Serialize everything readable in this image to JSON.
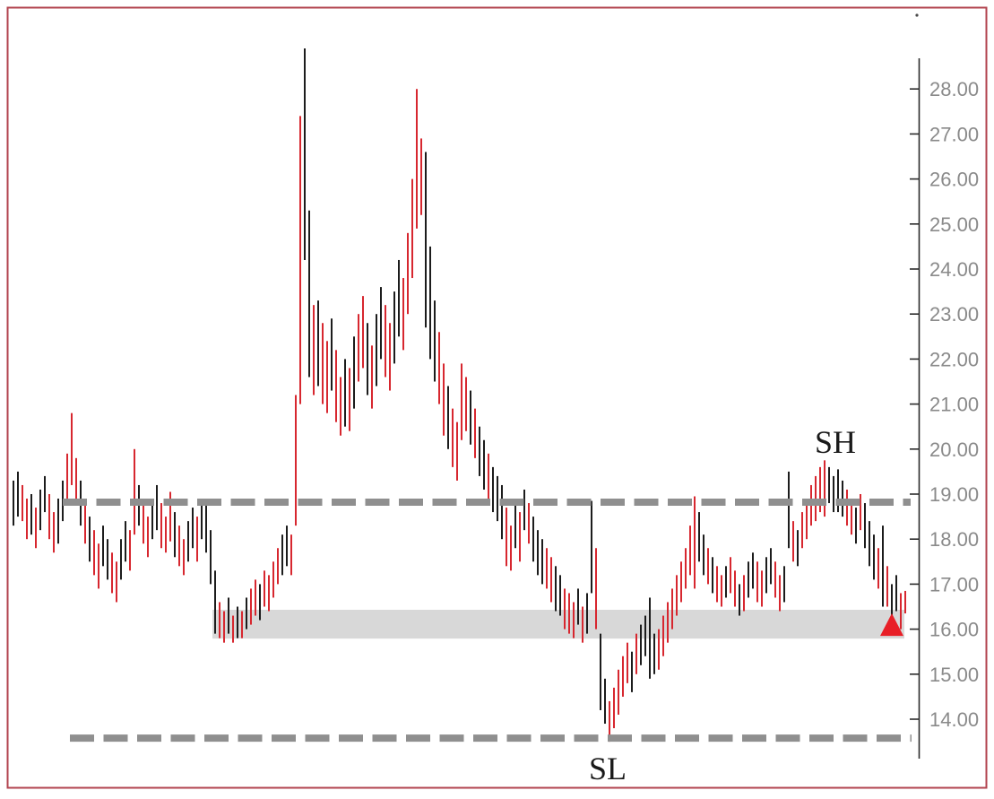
{
  "annotations": {
    "swing_high": "SH",
    "swing_low": "SL"
  },
  "colors": {
    "up_bar": "#1c1c1c",
    "down_bar": "#d7272f",
    "dashed_line": "#8f8f8f",
    "support_band": "#d8d8d8",
    "marker": "#e81f27",
    "axis_line": "#2b2b2b",
    "axis_text": "#8a8a8a",
    "frame_border": "#b2434e",
    "annotation_text": "#1a1a1a"
  },
  "chart_data": {
    "type": "bar",
    "subtype": "high-low price bars (red = down bar, black = up bar)",
    "title": "",
    "xlabel": "",
    "ylabel": "",
    "grid": false,
    "legend": false,
    "y_axis": {
      "position": "right",
      "min": 14.0,
      "max": 28.0,
      "tick_step": 1.0,
      "tick_labels": [
        "28.00",
        "27.00",
        "26.00",
        "25.00",
        "24.00",
        "23.00",
        "22.00",
        "21.00",
        "20.00",
        "19.00",
        "18.00",
        "17.00",
        "16.00",
        "15.00",
        "14.00"
      ]
    },
    "dashed_levels": [
      {
        "name": "upper-resistance",
        "price": 18.82
      },
      {
        "name": "lower-support",
        "price": 13.58
      }
    ],
    "support_zone": {
      "top_price": 16.43,
      "bottom_price": 15.79
    },
    "marker": {
      "type": "triangle-up",
      "price_top": 16.35,
      "price_bottom": 15.85,
      "bar_index": 196
    },
    "labels": [
      {
        "text": "SH",
        "meaning": "swing high"
      },
      {
        "text": "SL",
        "meaning": "swing low"
      }
    ],
    "bars": [
      [
        19.3,
        18.3,
        "k"
      ],
      [
        19.5,
        18.5,
        "k"
      ],
      [
        19.2,
        18.4,
        "r"
      ],
      [
        18.9,
        18.0,
        "r"
      ],
      [
        19.0,
        18.1,
        "k"
      ],
      [
        18.7,
        17.8,
        "r"
      ],
      [
        19.1,
        18.2,
        "k"
      ],
      [
        19.4,
        18.6,
        "k"
      ],
      [
        19.0,
        18.0,
        "r"
      ],
      [
        18.6,
        17.7,
        "r"
      ],
      [
        18.9,
        17.9,
        "k"
      ],
      [
        19.3,
        18.4,
        "k"
      ],
      [
        19.9,
        18.8,
        "r"
      ],
      [
        20.8,
        19.2,
        "r"
      ],
      [
        19.8,
        18.8,
        "r"
      ],
      [
        19.3,
        18.3,
        "k"
      ],
      [
        18.9,
        17.9,
        "r"
      ],
      [
        18.5,
        17.5,
        "k"
      ],
      [
        18.2,
        17.2,
        "r"
      ],
      [
        17.9,
        16.9,
        "r"
      ],
      [
        18.3,
        17.4,
        "k"
      ],
      [
        18.0,
        17.1,
        "k"
      ],
      [
        17.7,
        16.8,
        "r"
      ],
      [
        17.5,
        16.6,
        "r"
      ],
      [
        18.0,
        17.1,
        "k"
      ],
      [
        18.4,
        17.5,
        "k"
      ],
      [
        18.2,
        17.3,
        "r"
      ],
      [
        20.0,
        18.1,
        "r"
      ],
      [
        19.2,
        18.3,
        "k"
      ],
      [
        18.8,
        17.9,
        "r"
      ],
      [
        18.5,
        17.6,
        "r"
      ],
      [
        18.9,
        18.0,
        "k"
      ],
      [
        19.2,
        18.2,
        "k"
      ],
      [
        18.8,
        17.8,
        "r"
      ],
      [
        18.5,
        17.7,
        "r"
      ],
      [
        19.05,
        17.95,
        "r"
      ],
      [
        18.6,
        17.6,
        "k"
      ],
      [
        18.3,
        17.4,
        "r"
      ],
      [
        18.0,
        17.2,
        "r"
      ],
      [
        18.4,
        17.5,
        "k"
      ],
      [
        18.7,
        17.8,
        "k"
      ],
      [
        18.5,
        17.5,
        "r"
      ],
      [
        18.9,
        18.0,
        "k"
      ],
      [
        18.8,
        17.7,
        "k"
      ],
      [
        18.2,
        17.0,
        "k"
      ],
      [
        17.3,
        15.9,
        "k"
      ],
      [
        16.6,
        15.8,
        "r"
      ],
      [
        16.4,
        15.7,
        "r"
      ],
      [
        16.7,
        15.9,
        "k"
      ],
      [
        16.3,
        15.7,
        "r"
      ],
      [
        16.5,
        15.8,
        "k"
      ],
      [
        16.4,
        15.8,
        "r"
      ],
      [
        16.7,
        16.0,
        "k"
      ],
      [
        16.9,
        16.1,
        "r"
      ],
      [
        17.1,
        16.3,
        "r"
      ],
      [
        17.0,
        16.2,
        "k"
      ],
      [
        17.3,
        16.5,
        "r"
      ],
      [
        17.2,
        16.4,
        "r"
      ],
      [
        17.5,
        16.7,
        "r"
      ],
      [
        17.8,
        17.0,
        "r"
      ],
      [
        18.1,
        17.2,
        "k"
      ],
      [
        18.3,
        17.4,
        "k"
      ],
      [
        18.1,
        17.2,
        "r"
      ],
      [
        21.2,
        18.3,
        "r"
      ],
      [
        27.4,
        21.0,
        "r"
      ],
      [
        28.9,
        24.2,
        "k"
      ],
      [
        25.3,
        21.6,
        "k"
      ],
      [
        23.2,
        21.2,
        "r"
      ],
      [
        23.3,
        21.4,
        "k"
      ],
      [
        22.8,
        21.0,
        "r"
      ],
      [
        22.4,
        20.8,
        "r"
      ],
      [
        22.9,
        21.3,
        "k"
      ],
      [
        22.2,
        20.6,
        "r"
      ],
      [
        21.6,
        20.3,
        "r"
      ],
      [
        22.0,
        20.5,
        "k"
      ],
      [
        21.8,
        20.4,
        "r"
      ],
      [
        22.5,
        20.9,
        "k"
      ],
      [
        23.0,
        21.5,
        "r"
      ],
      [
        23.4,
        21.8,
        "r"
      ],
      [
        22.8,
        21.2,
        "k"
      ],
      [
        22.3,
        20.9,
        "r"
      ],
      [
        23.0,
        21.4,
        "k"
      ],
      [
        23.6,
        22.0,
        "k"
      ],
      [
        23.2,
        21.6,
        "r"
      ],
      [
        22.8,
        21.3,
        "r"
      ],
      [
        23.5,
        21.9,
        "k"
      ],
      [
        24.2,
        22.5,
        "k"
      ],
      [
        23.8,
        22.2,
        "r"
      ],
      [
        24.8,
        23.0,
        "r"
      ],
      [
        26.0,
        23.8,
        "r"
      ],
      [
        28.0,
        24.9,
        "r"
      ],
      [
        26.9,
        25.2,
        "r"
      ],
      [
        26.6,
        22.7,
        "k"
      ],
      [
        24.5,
        22.0,
        "k"
      ],
      [
        23.3,
        21.5,
        "k"
      ],
      [
        22.6,
        21.0,
        "r"
      ],
      [
        21.9,
        20.3,
        "r"
      ],
      [
        21.4,
        20.0,
        "k"
      ],
      [
        20.9,
        19.6,
        "r"
      ],
      [
        20.6,
        19.3,
        "r"
      ],
      [
        21.9,
        20.2,
        "r"
      ],
      [
        21.6,
        20.4,
        "r"
      ],
      [
        21.3,
        20.1,
        "k"
      ],
      [
        20.9,
        19.8,
        "r"
      ],
      [
        20.5,
        19.4,
        "k"
      ],
      [
        20.2,
        19.1,
        "k"
      ],
      [
        19.9,
        18.8,
        "r"
      ],
      [
        19.6,
        18.6,
        "k"
      ],
      [
        19.4,
        18.4,
        "k"
      ],
      [
        19.2,
        18.0,
        "k"
      ],
      [
        18.7,
        17.4,
        "r"
      ],
      [
        18.3,
        17.3,
        "r"
      ],
      [
        18.9,
        17.8,
        "k"
      ],
      [
        18.6,
        17.5,
        "r"
      ],
      [
        19.1,
        18.2,
        "k"
      ],
      [
        18.8,
        17.9,
        "r"
      ],
      [
        18.5,
        17.5,
        "k"
      ],
      [
        18.2,
        17.2,
        "k"
      ],
      [
        18.0,
        17.0,
        "k"
      ],
      [
        17.8,
        16.9,
        "r"
      ],
      [
        17.6,
        16.6,
        "r"
      ],
      [
        17.4,
        16.4,
        "k"
      ],
      [
        17.2,
        16.3,
        "k"
      ],
      [
        16.9,
        16.0,
        "r"
      ],
      [
        16.8,
        15.9,
        "r"
      ],
      [
        16.6,
        15.8,
        "r"
      ],
      [
        16.9,
        16.1,
        "k"
      ],
      [
        16.5,
        15.7,
        "r"
      ],
      [
        16.8,
        15.9,
        "k"
      ],
      [
        18.85,
        16.8,
        "k"
      ],
      [
        17.8,
        16.0,
        "r"
      ],
      [
        15.9,
        14.2,
        "k"
      ],
      [
        14.9,
        13.9,
        "k"
      ],
      [
        14.4,
        13.5,
        "r"
      ],
      [
        14.7,
        13.8,
        "r"
      ],
      [
        15.1,
        14.1,
        "r"
      ],
      [
        15.4,
        14.5,
        "r"
      ],
      [
        15.7,
        14.8,
        "r"
      ],
      [
        15.5,
        14.6,
        "k"
      ],
      [
        15.9,
        15.0,
        "r"
      ],
      [
        16.1,
        15.2,
        "k"
      ],
      [
        16.3,
        15.4,
        "k"
      ],
      [
        16.7,
        14.9,
        "k"
      ],
      [
        15.9,
        15.0,
        "k"
      ],
      [
        16.0,
        15.1,
        "r"
      ],
      [
        16.3,
        15.4,
        "r"
      ],
      [
        16.6,
        15.7,
        "r"
      ],
      [
        16.9,
        16.0,
        "r"
      ],
      [
        17.2,
        16.3,
        "r"
      ],
      [
        17.5,
        16.6,
        "r"
      ],
      [
        17.8,
        16.9,
        "r"
      ],
      [
        18.3,
        17.2,
        "r"
      ],
      [
        18.95,
        16.9,
        "r"
      ],
      [
        18.6,
        17.5,
        "k"
      ],
      [
        18.1,
        17.2,
        "k"
      ],
      [
        17.8,
        17.0,
        "r"
      ],
      [
        17.6,
        16.8,
        "k"
      ],
      [
        17.4,
        16.6,
        "r"
      ],
      [
        17.2,
        16.5,
        "r"
      ],
      [
        17.4,
        16.7,
        "k"
      ],
      [
        17.6,
        16.8,
        "r"
      ],
      [
        17.3,
        16.5,
        "r"
      ],
      [
        17.0,
        16.3,
        "k"
      ],
      [
        17.2,
        16.4,
        "r"
      ],
      [
        17.5,
        16.7,
        "k"
      ],
      [
        17.7,
        16.9,
        "k"
      ],
      [
        17.5,
        16.6,
        "r"
      ],
      [
        17.3,
        16.5,
        "r"
      ],
      [
        17.6,
        16.8,
        "k"
      ],
      [
        17.8,
        17.0,
        "k"
      ],
      [
        17.5,
        16.7,
        "r"
      ],
      [
        17.2,
        16.4,
        "r"
      ],
      [
        17.4,
        16.6,
        "k"
      ],
      [
        19.5,
        17.8,
        "k"
      ],
      [
        18.4,
        17.5,
        "r"
      ],
      [
        18.2,
        17.4,
        "k"
      ],
      [
        18.6,
        17.8,
        "r"
      ],
      [
        18.9,
        18.0,
        "r"
      ],
      [
        19.2,
        18.3,
        "r"
      ],
      [
        19.4,
        18.4,
        "r"
      ],
      [
        19.6,
        18.6,
        "r"
      ],
      [
        19.75,
        18.5,
        "r"
      ],
      [
        19.6,
        18.8,
        "k"
      ],
      [
        19.4,
        18.6,
        "k"
      ],
      [
        19.55,
        18.6,
        "k"
      ],
      [
        19.3,
        18.5,
        "k"
      ],
      [
        19.1,
        18.3,
        "r"
      ],
      [
        18.9,
        18.1,
        "r"
      ],
      [
        18.7,
        17.9,
        "k"
      ],
      [
        19.0,
        18.2,
        "r"
      ],
      [
        18.8,
        17.8,
        "k"
      ],
      [
        18.4,
        17.4,
        "k"
      ],
      [
        18.1,
        17.1,
        "k"
      ],
      [
        17.8,
        16.9,
        "r"
      ],
      [
        18.3,
        16.5,
        "k"
      ],
      [
        17.4,
        16.5,
        "r"
      ],
      [
        17.0,
        16.2,
        "k"
      ],
      [
        17.2,
        16.4,
        "k"
      ],
      [
        16.8,
        16.0,
        "r"
      ],
      [
        16.85,
        16.35,
        "r"
      ]
    ]
  }
}
